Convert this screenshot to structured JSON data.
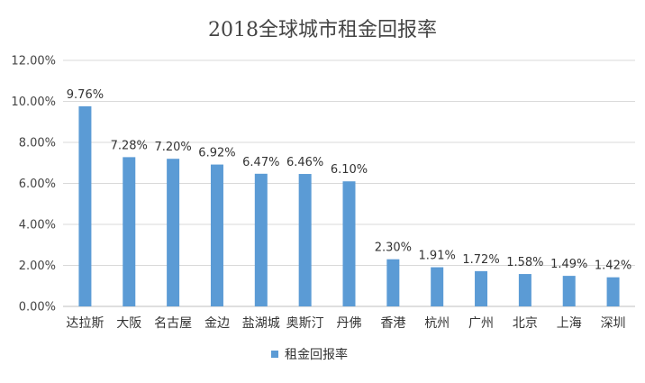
{
  "chart_data": {
    "type": "bar",
    "title": "2018全球城市租金回报率",
    "xlabel": "",
    "ylabel": "",
    "categories": [
      "达拉斯",
      "大阪",
      "名古屋",
      "金边",
      "盐湖城",
      "奥斯汀",
      "丹佛",
      "香港",
      "杭州",
      "广州",
      "北京",
      "上海",
      "深圳"
    ],
    "series": [
      {
        "name": "租金回报率",
        "values": [
          9.76,
          7.28,
          7.2,
          6.92,
          6.47,
          6.46,
          6.1,
          2.3,
          1.91,
          1.72,
          1.58,
          1.49,
          1.42
        ],
        "labels": [
          "9.76%",
          "7.28%",
          "7.20%",
          "6.92%",
          "6.47%",
          "6.46%",
          "6.10%",
          "2.30%",
          "1.91%",
          "1.72%",
          "1.58%",
          "1.49%",
          "1.42%"
        ]
      }
    ],
    "ylim": [
      0,
      12
    ],
    "yticks": [
      0,
      2,
      4,
      6,
      8,
      10,
      12
    ],
    "ytick_labels": [
      "0.00%",
      "2.00%",
      "4.00%",
      "6.00%",
      "8.00%",
      "10.00%",
      "12.00%"
    ],
    "grid": true,
    "legend_position": "bottom",
    "colors": {
      "bar": "#5b9bd5",
      "grid": "#d9d9d9",
      "axis": "#bfbfbf"
    }
  }
}
